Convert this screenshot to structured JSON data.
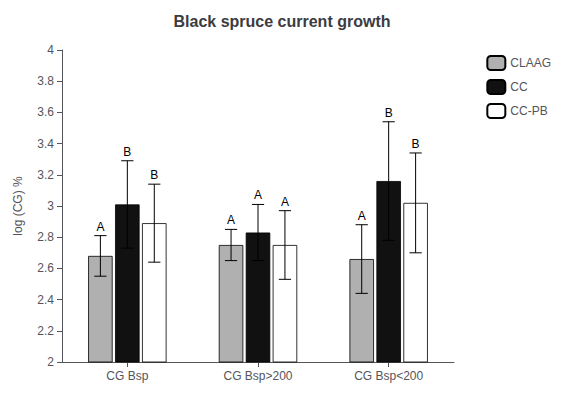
{
  "chart_data": {
    "type": "bar",
    "title": "Black spruce current growth",
    "ylabel": "log (CG) %",
    "categories": [
      "CG Bsp",
      "CG Bsp>200",
      "CG Bsp<200"
    ],
    "series": [
      {
        "name": "CLAAG",
        "color": "#b0b0b0",
        "values": [
          2.68,
          2.75,
          2.66
        ],
        "errors": [
          0.13,
          0.1,
          0.22
        ],
        "sig_labels": [
          "A",
          "A",
          "A"
        ]
      },
      {
        "name": "CC",
        "color": "#111111",
        "values": [
          3.01,
          2.83,
          3.16
        ],
        "errors": [
          0.28,
          0.18,
          0.38
        ],
        "sig_labels": [
          "B",
          "A",
          "B"
        ]
      },
      {
        "name": "CC-PB",
        "color": "#ffffff",
        "values": [
          2.89,
          2.75,
          3.02
        ],
        "errors": [
          0.25,
          0.22,
          0.32
        ],
        "sig_labels": [
          "B",
          "A",
          "B"
        ]
      }
    ],
    "ylim": [
      2.0,
      4.0
    ],
    "yticks": [
      2,
      2.2,
      2.4,
      2.6,
      2.8,
      3,
      3.2,
      3.4,
      3.6,
      3.8,
      4
    ],
    "grid": false,
    "legend": "upper right"
  }
}
